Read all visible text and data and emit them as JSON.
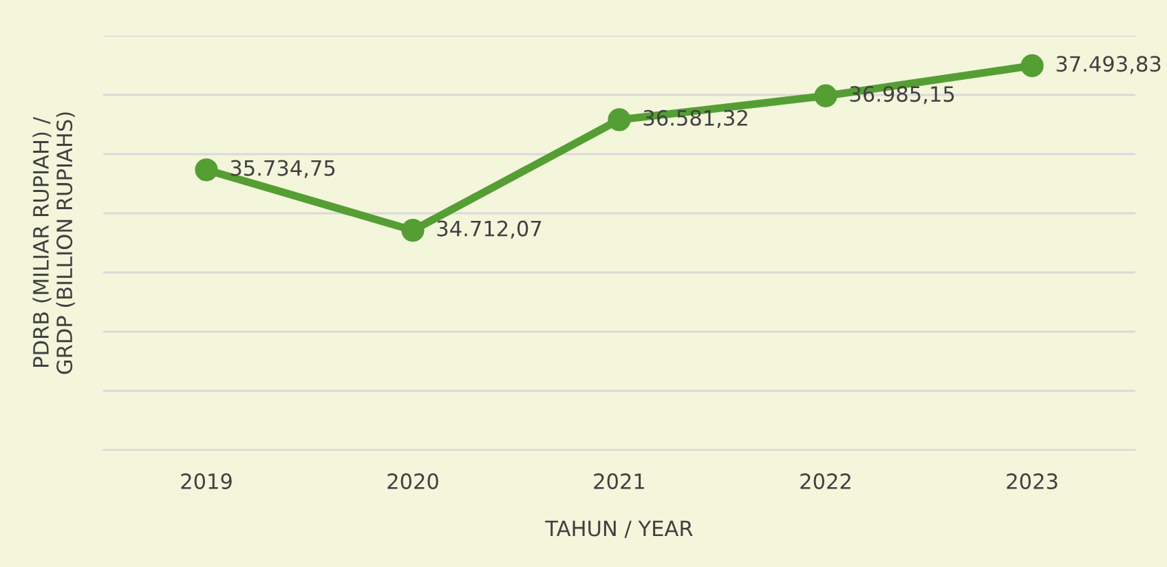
{
  "chart_data": {
    "type": "line",
    "xlabel": "TAHUN / YEAR",
    "ylabel": "PDRB (MILIAR RUPIAH) /\nGRDP (BILLION RUPIAHS)",
    "categories": [
      "2019",
      "2020",
      "2021",
      "2022",
      "2023"
    ],
    "series": [
      {
        "color": "#559e34",
        "values": [
          35734.75,
          34712.07,
          36581.32,
          36985.15,
          37493.83
        ],
        "value_labels": [
          "35.734,75",
          "34.712,07",
          "36.581,32",
          "36.985,15",
          "37.493,83"
        ]
      }
    ],
    "ylim": [
      31000,
      38000
    ],
    "yticks": [
      {
        "value": 31000,
        "label": null
      },
      {
        "value": 32000,
        "label": null
      },
      {
        "value": 33000,
        "label": null
      },
      {
        "value": 34000,
        "label": null
      },
      {
        "value": 35000,
        "label": null
      },
      {
        "value": 36000,
        "label": null
      },
      {
        "value": 37000,
        "label": null
      },
      {
        "value": 38000,
        "label": null
      }
    ],
    "tick_labels": "x",
    "grid": "y",
    "marker": "circle",
    "line_style": "solid"
  }
}
